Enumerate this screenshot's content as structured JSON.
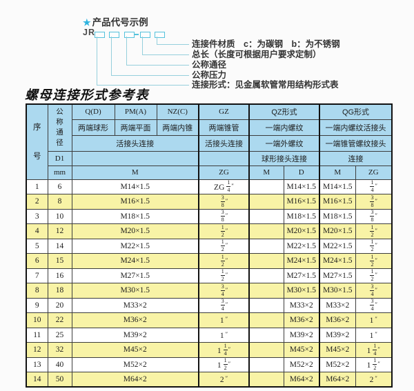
{
  "diagram": {
    "star": "★",
    "heading": "产品代号示例",
    "prefix": "JR",
    "labels": [
      "连接件材质　c：为碳钢　b：为不锈钢",
      "总长（长度可根据用户要求定制）",
      "公称通径",
      "公称压力",
      "连接形式：见金属软管常用结构形式表"
    ]
  },
  "title": "螺母连接形式参考表",
  "table": {
    "header": {
      "seq": "序号",
      "nominal": "公称通径",
      "d1": "D1",
      "mm": "mm",
      "q_code": "Q(D)",
      "pm_code": "PM(A)",
      "nz_code": "NZ(C)",
      "gz_code": "GZ",
      "qz_code": "QZ形式",
      "qg_code": "QG形式",
      "q_ends": "两端球形",
      "pm_ends": "两端平面",
      "nz_ends": "两端内锥",
      "gz_ends": "两端锥管",
      "qz_row2": "一端内螺纹",
      "qg_row2": "一端内螺纹活接头",
      "qpn_conn": "活接头连接",
      "gz_conn": "活接头连接",
      "qz_row3": "一端外螺纹",
      "qg_row3": "一端锥管螺纹接头",
      "qz_row4": "球形接头连接",
      "qg_row4": "连接",
      "m_unit": "M",
      "gz_unit": "ZG",
      "qz_m_unit": "M",
      "qz_d_unit": "D",
      "qg_m_unit": "M",
      "qg_zg_unit": "ZG"
    },
    "rows": [
      {
        "seq": "1",
        "mm": "6",
        "m": "M14×1.5",
        "gz": "ZG 1/4\"",
        "qz_m": "",
        "qz_d": "M14×1.5",
        "qg_m": "M14×1.5",
        "qg_zg": "1/4\""
      },
      {
        "seq": "2",
        "mm": "8",
        "m": "M16×1.5",
        "gz": "3/8\"",
        "qz_m": "",
        "qz_d": "M16×1.5",
        "qg_m": "M16×1.5",
        "qg_zg": "3/8\""
      },
      {
        "seq": "3",
        "mm": "10",
        "m": "M18×1.5",
        "gz": "3/8\"",
        "qz_m": "",
        "qz_d": "M18×1.5",
        "qg_m": "M18×1.5",
        "qg_zg": "3/8\""
      },
      {
        "seq": "4",
        "mm": "12",
        "m": "M20×1.5",
        "gz": "1/2\"",
        "qz_m": "",
        "qz_d": "M20×1.5",
        "qg_m": "M20×1.5",
        "qg_zg": "1/2\""
      },
      {
        "seq": "5",
        "mm": "14",
        "m": "M22×1.5",
        "gz": "1/2\"",
        "qz_m": "",
        "qz_d": "M22×1.5",
        "qg_m": "M22×1.5",
        "qg_zg": "1/2\""
      },
      {
        "seq": "6",
        "mm": "15",
        "m": "M24×1.5",
        "gz": "1/2\"",
        "qz_m": "",
        "qz_d": "M24×1.5",
        "qg_m": "M24×1.5",
        "qg_zg": "1/2\""
      },
      {
        "seq": "7",
        "mm": "16",
        "m": "M27×1.5",
        "gz": "1/2\"",
        "qz_m": "",
        "qz_d": "M27×1.5",
        "qg_m": "M27×1.5",
        "qg_zg": "1/2\""
      },
      {
        "seq": "8",
        "mm": "18",
        "m": "M30×1.5",
        "gz": "3/4\"",
        "qz_m": "",
        "qz_d": "M30×1.5",
        "qg_m": "M30×1.5",
        "qg_zg": "3/4\""
      },
      {
        "seq": "9",
        "mm": "20",
        "m": "M33×2",
        "gz": "3/4\"",
        "qz_m": "",
        "qz_d": "M33×2",
        "qg_m": "M33×2",
        "qg_zg": "3/4\""
      },
      {
        "seq": "10",
        "mm": "22",
        "m": "M36×2",
        "gz": "1\"",
        "qz_m": "",
        "qz_d": "M36×2",
        "qg_m": "M36×2",
        "qg_zg": "1\""
      },
      {
        "seq": "11",
        "mm": "25",
        "m": "M39×2",
        "gz": "1\"",
        "qz_m": "",
        "qz_d": "M39×2",
        "qg_m": "M39×2",
        "qg_zg": "1\""
      },
      {
        "seq": "12",
        "mm": "32",
        "m": "M45×2",
        "gz": "1 1/4\"",
        "qz_m": "",
        "qz_d": "M45×2",
        "qg_m": "M45×2",
        "qg_zg": "1 1/4\""
      },
      {
        "seq": "13",
        "mm": "40",
        "m": "M52×2",
        "gz": "1 1/2\"",
        "qz_m": "",
        "qz_d": "M52×2",
        "qg_m": "M52×2",
        "qg_zg": "1 1/2\""
      },
      {
        "seq": "14",
        "mm": "50",
        "m": "M64×2",
        "gz": "2\"",
        "qz_m": "",
        "qz_d": "M64×2",
        "qg_m": "M64×2",
        "qg_zg": "2\""
      }
    ]
  },
  "colors": {
    "header_bg": "#ACD9EF",
    "row_alt_bg": "#F8F3A6",
    "accent_cyan": "#2FB4E0",
    "border": "#111111"
  }
}
